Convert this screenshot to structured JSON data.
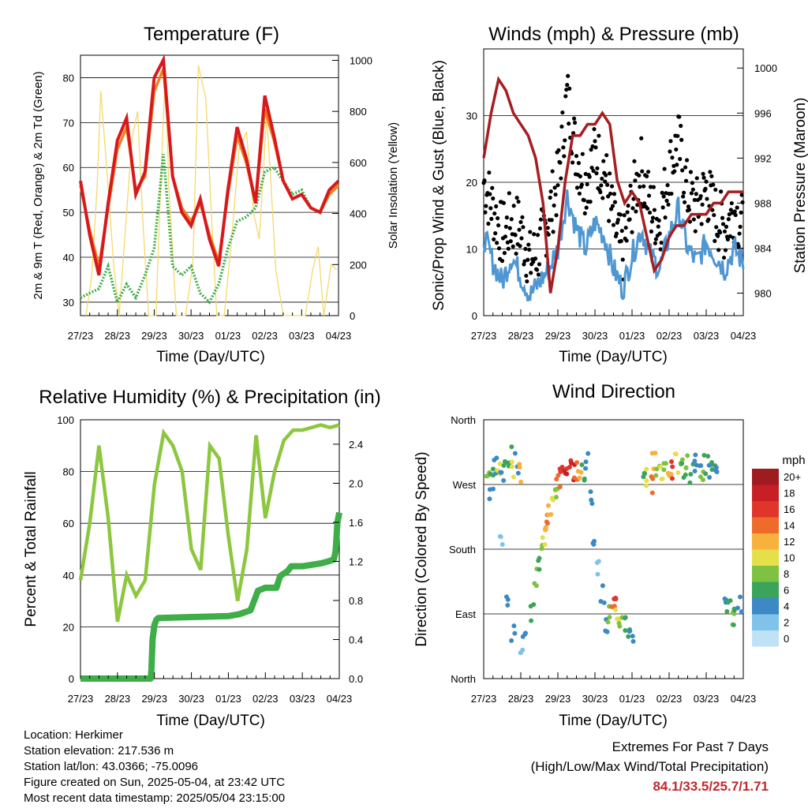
{
  "x_ticks": [
    "27/23",
    "28/23",
    "29/23",
    "30/23",
    "01/23",
    "02/23",
    "03/23",
    "04/23"
  ],
  "x_label": "Time (Day/UTC)",
  "panels": {
    "temperature": {
      "title": "Temperature (F)",
      "ylabel_left": "2m & 9m T (Red, Orange) & 2m Td (Green)",
      "ylabel_right": "Solar Insolation (Yellow)",
      "left_ticks": [
        "30",
        "40",
        "50",
        "60",
        "70",
        "80"
      ],
      "right_ticks": [
        "0",
        "200",
        "400",
        "600",
        "800",
        "1000"
      ]
    },
    "winds": {
      "title": "Winds (mph) & Pressure (mb)",
      "ylabel_left": "Sonic/Prop Wind & Gust (Blue, Black)",
      "ylabel_right": "Station Pressure (Maroon)",
      "left_ticks": [
        "0",
        "10",
        "20",
        "30"
      ],
      "right_ticks": [
        "980",
        "984",
        "988",
        "992",
        "996",
        "1000"
      ]
    },
    "humidity": {
      "title": "Relative Humidity (%) & Precipitation (in)",
      "ylabel_left": "Percent & Total Rainfall",
      "left_ticks": [
        "0",
        "20",
        "40",
        "60",
        "80",
        "100"
      ],
      "right_ticks": [
        "0.0",
        "0.4",
        "0.8",
        "1.2",
        "1.6",
        "2.0",
        "2.4"
      ]
    },
    "direction": {
      "title": "Wind Direction",
      "ylabel_left": "Direction (Colored By Speed)",
      "left_ticks": [
        "North",
        "East",
        "South",
        "West",
        "North"
      ],
      "legend_title": "mph",
      "legend_labels": [
        "20+",
        "18",
        "16",
        "14",
        "12",
        "10",
        "8",
        "6",
        "4",
        "2",
        "0"
      ]
    }
  },
  "info": {
    "location": "Location: Herkimer",
    "elevation": "Station elevation: 217.536 m",
    "latlon": "Station lat/lon: 43.0366; -75.0096",
    "created": "Figure created on Sun, 2025-05-04, at 23:42 UTC",
    "timestamp": "Most recent data timestamp: 2025/05/04 23:15:00"
  },
  "extremes": {
    "line1": "Extremes For Past 7 Days",
    "line2": "(High/Low/Max Wind/Total Precipitation)",
    "values": "84.1/33.5/25.7/1.71"
  },
  "colors": {
    "temp_2m": "#d7191c",
    "temp_9m": "#f07f1e",
    "dewpoint": "#3fae49",
    "solar": "#f5d96a",
    "wind": "#4f97d3",
    "gust": "#000000",
    "pressure": "#a51e22",
    "rh": "#8dc63f",
    "precip": "#3fae49",
    "speed_scale": [
      "#bfe3f5",
      "#7fc3ea",
      "#3c89c6",
      "#3aa55a",
      "#7fc241",
      "#e5e04a",
      "#f7b13c",
      "#ef6b2c",
      "#e0352b",
      "#c71f25",
      "#9e1b1f"
    ]
  },
  "chart_data": [
    {
      "type": "line",
      "title": "Temperature (F)",
      "xlabel": "Time (Day/UTC)",
      "ylabel": "2m & 9m T (Red, Orange) & 2m Td (Green)",
      "y2label": "Solar Insolation (Yellow)",
      "x": [
        0,
        0.25,
        0.5,
        0.75,
        1,
        1.25,
        1.5,
        1.75,
        2,
        2.25,
        2.5,
        2.75,
        3,
        3.25,
        3.5,
        3.75,
        4,
        4.25,
        4.5,
        4.75,
        5,
        5.25,
        5.5,
        5.75,
        6,
        6.25,
        6.5,
        6.75,
        7
      ],
      "ylim": [
        27,
        85
      ],
      "y2lim": [
        0,
        1020
      ],
      "series": [
        {
          "name": "2m T",
          "axis": "left",
          "values": [
            57,
            45,
            36,
            52,
            66,
            71,
            54,
            59,
            80,
            84,
            58,
            50,
            47,
            53,
            44,
            38,
            55,
            69,
            62,
            52,
            76,
            67,
            57,
            53,
            54,
            51,
            50,
            55,
            57
          ]
        },
        {
          "name": "9m T",
          "axis": "left",
          "values": [
            56,
            46,
            38,
            51,
            64,
            69,
            55,
            58,
            77,
            82,
            58,
            51,
            48,
            52,
            45,
            39,
            54,
            67,
            61,
            52,
            73,
            66,
            57,
            53,
            54,
            51,
            50,
            54,
            56
          ]
        },
        {
          "name": "2m Td",
          "axis": "left",
          "values": [
            31,
            32,
            33,
            38,
            30,
            34,
            31,
            36,
            42,
            63,
            38,
            36,
            38,
            32,
            30,
            34,
            42,
            48,
            49,
            51,
            59,
            60,
            57,
            54,
            55,
            51,
            50,
            55,
            56
          ]
        },
        {
          "name": "Solar",
          "axis": "right",
          "x": [
            0.15,
            0.3,
            0.45,
            0.55,
            0.7,
            0.9,
            1.05,
            1.2,
            1.4,
            1.55,
            1.7,
            1.85,
            2.05,
            2.15,
            2.3,
            2.4,
            2.6,
            2.85,
            3.05,
            3.2,
            3.4,
            3.55,
            3.7,
            3.9,
            4.1,
            4.3,
            4.5,
            4.7,
            4.85,
            5.05,
            5.15,
            5.3,
            5.5,
            5.7,
            5.9,
            6.1,
            6.3,
            6.45,
            6.6,
            6.8,
            6.95
          ],
          "values": [
            0,
            150,
            500,
            880,
            600,
            200,
            0,
            300,
            700,
            800,
            350,
            0,
            0,
            420,
            950,
            500,
            0,
            0,
            200,
            980,
            850,
            400,
            0,
            0,
            300,
            650,
            720,
            400,
            300,
            780,
            560,
            180,
            0,
            0,
            0,
            0,
            180,
            270,
            0,
            200,
            180
          ]
        }
      ]
    },
    {
      "type": "line",
      "title": "Winds (mph) & Pressure (mb)",
      "xlabel": "Time (Day/UTC)",
      "ylabel": "Sonic/Prop Wind & Gust (Blue, Black)",
      "y2label": "Station Pressure (Maroon)",
      "x": [
        0,
        0.25,
        0.5,
        0.75,
        1,
        1.25,
        1.5,
        1.75,
        2,
        2.25,
        2.5,
        2.75,
        3,
        3.25,
        3.5,
        3.75,
        4,
        4.25,
        4.5,
        4.75,
        5,
        5.25,
        5.5,
        5.75,
        6,
        6.25,
        6.5,
        6.75,
        7
      ],
      "ylim": [
        0,
        40
      ],
      "y2lim": [
        978,
        1001.7
      ],
      "series": [
        {
          "name": "Wind",
          "axis": "left",
          "values": [
            12,
            8,
            5,
            9,
            6,
            3,
            5,
            7,
            10,
            18,
            13,
            10,
            14,
            12,
            7,
            4,
            9,
            13,
            9,
            7,
            12,
            16,
            10,
            8,
            11,
            9,
            7,
            10,
            8
          ]
        },
        {
          "name": "Gust",
          "axis": "left",
          "values": [
            20,
            16,
            12,
            14,
            13,
            8,
            10,
            15,
            20,
            33,
            24,
            20,
            24,
            22,
            14,
            9,
            17,
            22,
            16,
            14,
            22,
            26,
            18,
            16,
            19,
            15,
            13,
            16,
            13
          ]
        },
        {
          "name": "Pressure",
          "axis": "right",
          "x": [
            0,
            0.2,
            0.4,
            0.6,
            0.8,
            1.0,
            1.2,
            1.4,
            1.6,
            1.8,
            2.0,
            2.2,
            2.4,
            2.6,
            2.8,
            3.0,
            3.2,
            3.4,
            3.6,
            3.8,
            4.0,
            4.2,
            4.4,
            4.6,
            4.8,
            5.0,
            5.2,
            5.4,
            5.6,
            5.8,
            6.0,
            6.2,
            6.4,
            6.6,
            6.8,
            7.0
          ],
          "values": [
            992,
            996,
            999,
            998,
            996,
            995,
            994,
            992,
            988,
            980,
            984,
            990,
            994,
            994,
            995,
            995,
            996,
            995,
            990,
            988,
            989,
            988,
            985,
            982,
            983,
            985,
            986,
            986,
            987,
            987,
            987,
            988,
            988,
            989,
            989,
            989
          ]
        }
      ]
    },
    {
      "type": "line",
      "title": "Relative Humidity (%) & Precipitation (in)",
      "xlabel": "Time (Day/UTC)",
      "ylabel": "Percent & Total Rainfall",
      "x": [
        0,
        0.25,
        0.5,
        0.75,
        1,
        1.25,
        1.5,
        1.75,
        2,
        2.25,
        2.5,
        2.75,
        3,
        3.25,
        3.5,
        3.75,
        4,
        4.25,
        4.5,
        4.75,
        5,
        5.25,
        5.5,
        5.75,
        6,
        6.25,
        6.5,
        6.75,
        7
      ],
      "ylim": [
        0,
        100
      ],
      "y2lim": [
        0,
        2.65
      ],
      "series": [
        {
          "name": "RH",
          "axis": "left",
          "values": [
            38,
            60,
            90,
            62,
            22,
            40,
            32,
            38,
            75,
            95,
            90,
            80,
            50,
            42,
            90,
            85,
            55,
            30,
            50,
            94,
            62,
            80,
            92,
            96,
            96,
            97,
            98,
            97,
            98
          ]
        },
        {
          "name": "Precip",
          "axis": "right",
          "x": [
            0,
            1.0,
            1.9,
            1.92,
            1.95,
            2.0,
            2.05,
            2.1,
            3.0,
            4.0,
            4.3,
            4.6,
            4.7,
            4.8,
            5.0,
            5.3,
            5.4,
            5.6,
            5.7,
            6.0,
            6.5,
            6.7,
            6.85,
            6.9,
            6.95,
            7.0
          ],
          "values": [
            0,
            0,
            0,
            0.1,
            0.4,
            0.55,
            0.6,
            0.62,
            0.63,
            0.64,
            0.66,
            0.7,
            0.8,
            0.9,
            0.93,
            0.93,
            1.05,
            1.1,
            1.15,
            1.15,
            1.18,
            1.2,
            1.22,
            1.3,
            1.6,
            1.7
          ]
        }
      ]
    },
    {
      "type": "scatter",
      "title": "Wind Direction",
      "xlabel": "Time (Day/UTC)",
      "ylabel": "Direction (Colored By Speed)",
      "y_ticks": [
        "North",
        "East",
        "South",
        "West",
        "North"
      ],
      "colorbar": {
        "title": "mph",
        "labels": [
          "20+",
          "18",
          "16",
          "14",
          "12",
          "10",
          "8",
          "6",
          "4",
          "2",
          "0"
        ]
      },
      "points": [
        [
          0.1,
          290,
          8
        ],
        [
          0.2,
          285,
          6
        ],
        [
          0.3,
          300,
          4
        ],
        [
          0.4,
          295,
          10
        ],
        [
          0.5,
          280,
          3
        ],
        [
          0.6,
          300,
          5
        ],
        [
          0.7,
          310,
          6
        ],
        [
          0.8,
          290,
          9
        ],
        [
          0.9,
          300,
          3
        ],
        [
          0.95,
          285,
          12
        ],
        [
          0.2,
          250,
          3
        ],
        [
          0.5,
          200,
          2
        ],
        [
          0.6,
          110,
          4
        ],
        [
          0.8,
          60,
          3
        ],
        [
          1.0,
          30,
          2
        ],
        [
          1.1,
          70,
          4
        ],
        [
          1.3,
          90,
          5
        ],
        [
          1.4,
          140,
          7
        ],
        [
          1.5,
          160,
          6
        ],
        [
          1.55,
          180,
          8
        ],
        [
          1.6,
          200,
          10
        ],
        [
          1.7,
          220,
          12
        ],
        [
          1.75,
          230,
          13
        ],
        [
          1.8,
          240,
          11
        ],
        [
          1.9,
          250,
          10
        ],
        [
          1.95,
          265,
          8
        ],
        [
          2.0,
          280,
          14
        ],
        [
          2.1,
          285,
          16
        ],
        [
          2.2,
          280,
          18
        ],
        [
          2.3,
          290,
          15
        ],
        [
          2.4,
          285,
          17
        ],
        [
          2.5,
          290,
          14
        ],
        [
          2.6,
          280,
          12
        ],
        [
          2.7,
          290,
          6
        ],
        [
          2.8,
          300,
          3
        ],
        [
          2.9,
          250,
          4
        ],
        [
          3.0,
          200,
          3
        ],
        [
          3.1,
          150,
          2
        ],
        [
          3.2,
          120,
          3
        ],
        [
          3.3,
          80,
          4
        ],
        [
          3.4,
          90,
          8
        ],
        [
          3.5,
          95,
          14
        ],
        [
          3.55,
          100,
          16
        ],
        [
          3.6,
          90,
          10
        ],
        [
          3.7,
          85,
          7
        ],
        [
          3.8,
          80,
          5
        ],
        [
          3.9,
          70,
          6
        ],
        [
          4.0,
          60,
          4
        ],
        [
          4.3,
          290,
          5
        ],
        [
          4.4,
          280,
          10
        ],
        [
          4.5,
          270,
          14
        ],
        [
          4.6,
          300,
          12
        ],
        [
          4.7,
          290,
          7
        ],
        [
          4.8,
          280,
          9
        ],
        [
          4.9,
          300,
          8
        ],
        [
          5.0,
          295,
          12
        ],
        [
          5.1,
          290,
          16
        ],
        [
          5.2,
          300,
          10
        ],
        [
          5.3,
          295,
          7
        ],
        [
          5.4,
          290,
          5
        ],
        [
          5.5,
          300,
          8
        ],
        [
          5.6,
          285,
          6
        ],
        [
          5.7,
          300,
          4
        ],
        [
          5.8,
          295,
          3
        ],
        [
          5.9,
          290,
          7
        ],
        [
          6.0,
          300,
          5
        ],
        [
          6.1,
          290,
          4
        ],
        [
          6.2,
          295,
          6
        ],
        [
          6.3,
          280,
          3
        ],
        [
          6.5,
          100,
          4
        ],
        [
          6.6,
          95,
          6
        ],
        [
          6.7,
          90,
          8
        ],
        [
          6.8,
          85,
          5
        ],
        [
          6.9,
          100,
          4
        ]
      ]
    }
  ]
}
